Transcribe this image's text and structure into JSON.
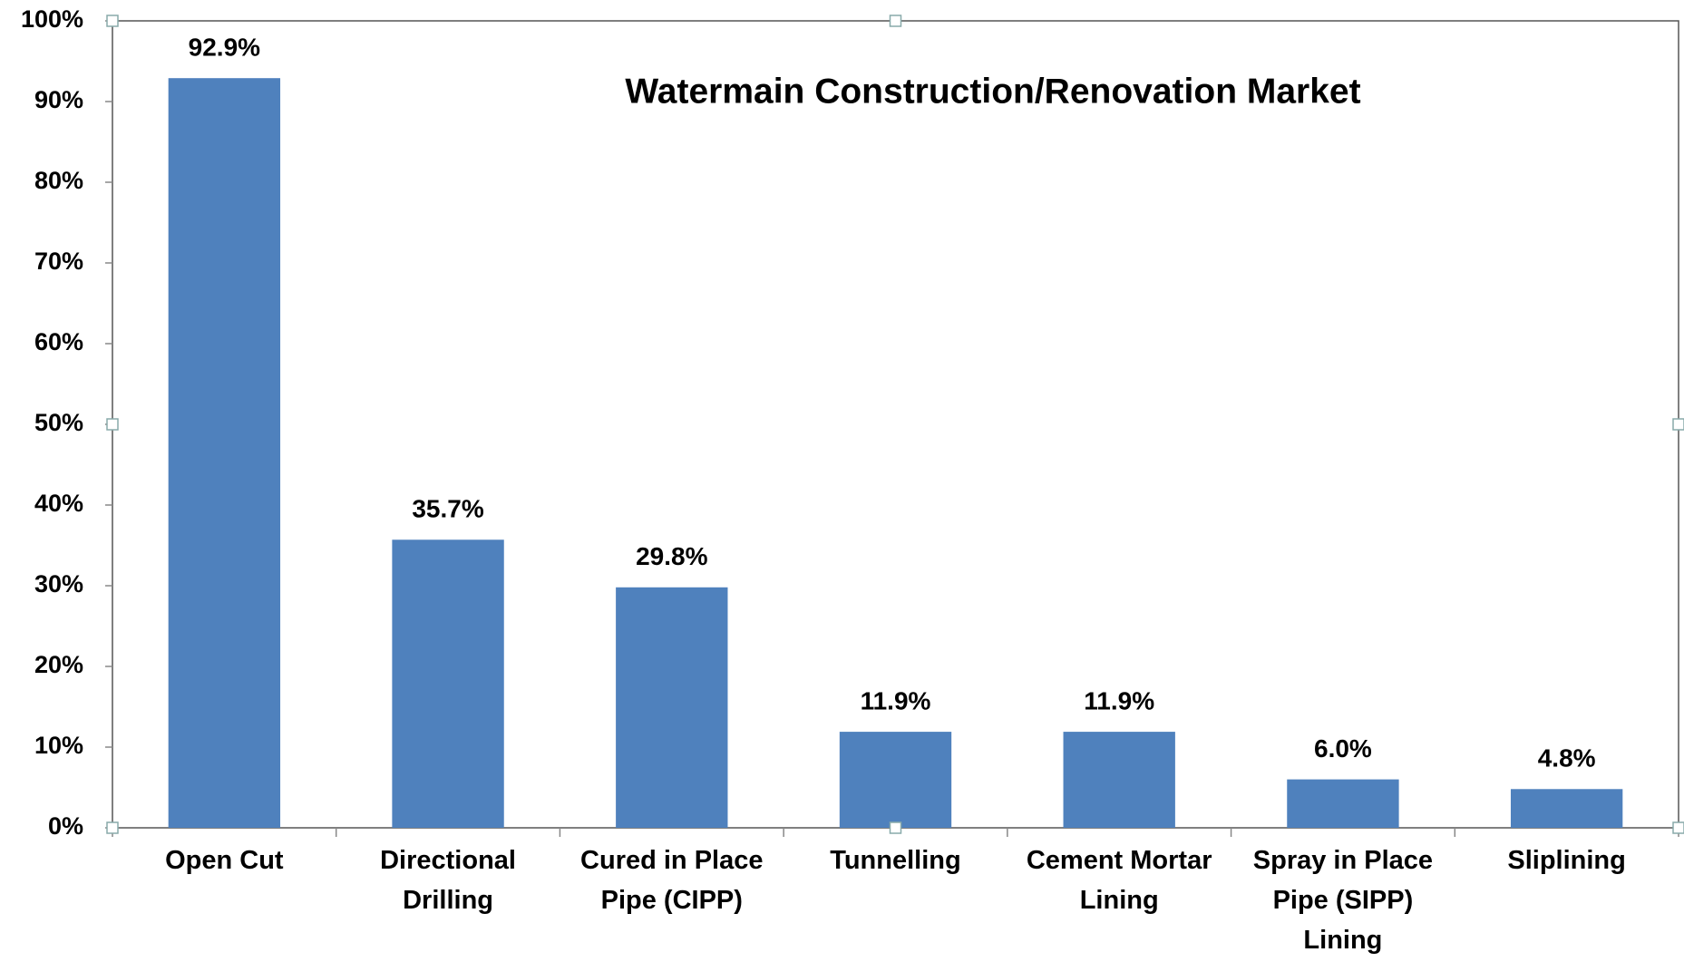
{
  "chart_data": {
    "type": "bar",
    "title": "Watermain Construction/Renovation Market",
    "categories": [
      "Open Cut",
      "Directional Drilling",
      "Cured in Place Pipe (CIPP)",
      "Tunnelling",
      "Cement Mortar Lining",
      "Spray in Place Pipe (SIPP) Lining",
      "Sliplining"
    ],
    "values": [
      92.9,
      35.7,
      29.8,
      11.9,
      11.9,
      6.0,
      4.8
    ],
    "value_labels": [
      "92.9%",
      "35.7%",
      "29.8%",
      "11.9%",
      "11.9%",
      "6.0%",
      "4.8%"
    ],
    "color": "#4f81bd",
    "ylim": [
      0,
      100
    ],
    "yticks": [
      {
        "value": 0,
        "label": "0%"
      },
      {
        "value": 10,
        "label": "10%"
      },
      {
        "value": 20,
        "label": "20%"
      },
      {
        "value": 30,
        "label": "30%"
      },
      {
        "value": 40,
        "label": "40%"
      },
      {
        "value": 50,
        "label": "50%"
      },
      {
        "value": 60,
        "label": "60%"
      },
      {
        "value": 70,
        "label": "70%"
      },
      {
        "value": 80,
        "label": "80%"
      },
      {
        "value": 90,
        "label": "90%"
      },
      {
        "value": 100,
        "label": "100%"
      }
    ],
    "grid": false
  }
}
